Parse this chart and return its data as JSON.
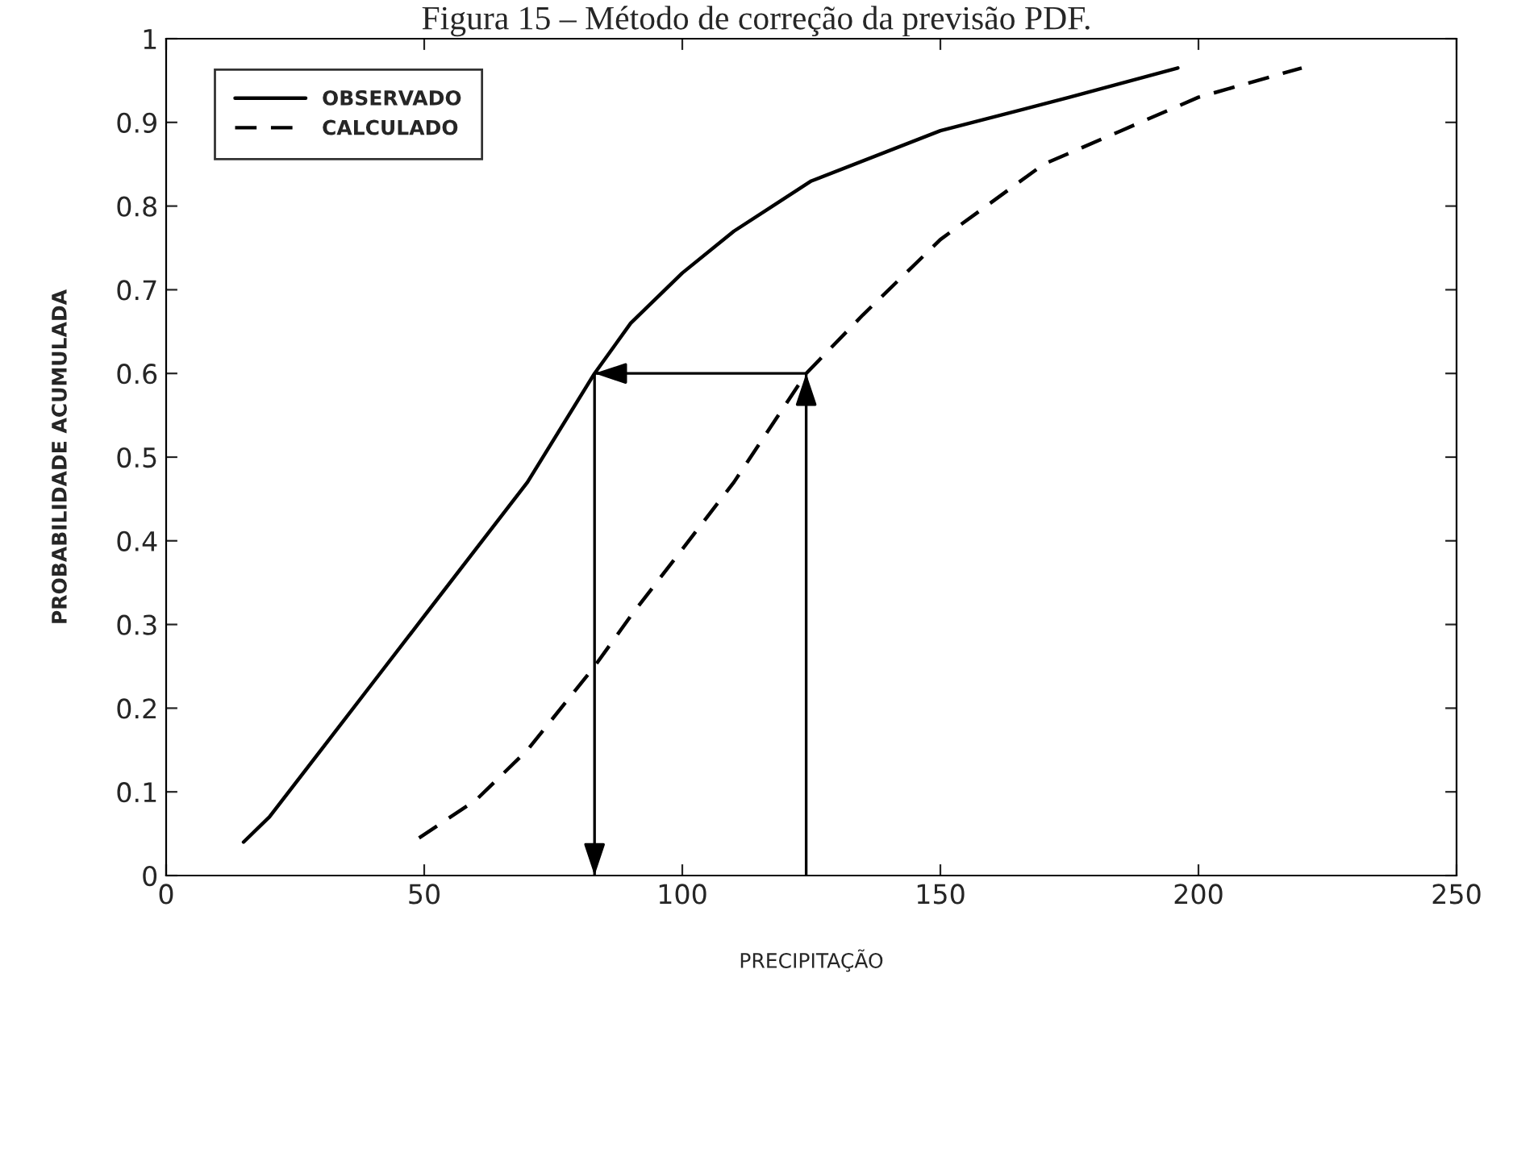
{
  "chart_data": {
    "type": "line",
    "title": "Figura 15 – Método de correção da previsão PDF.",
    "xlabel": "PRECIPITAÇÃO",
    "ylabel": "PROBABILIDADE ACUMULADA",
    "xlim": [
      0,
      250
    ],
    "xticks": [
      0,
      50,
      100,
      150,
      200,
      250
    ],
    "ylim": [
      0,
      1
    ],
    "yticks": [
      0,
      0.1,
      0.2,
      0.3,
      0.4,
      0.5,
      0.6,
      0.7,
      0.8,
      0.9,
      1
    ],
    "grid": false,
    "legend": "top left",
    "marker": "none",
    "series": [
      {
        "name": "OBSERVADO",
        "color": "#000000",
        "line_style": "solid",
        "x": [
          15,
          20,
          30,
          40,
          50,
          60,
          70,
          83,
          90,
          100,
          110,
          125,
          150,
          175,
          196
        ],
        "values": [
          0.04,
          0.07,
          0.15,
          0.23,
          0.31,
          0.39,
          0.47,
          0.6,
          0.66,
          0.72,
          0.77,
          0.83,
          0.89,
          0.93,
          0.965
        ]
      },
      {
        "name": "CALCULADO",
        "color": "#000000",
        "line_style": "dashed",
        "x": [
          49,
          60,
          70,
          83,
          90,
          100,
          110,
          124,
          135,
          150,
          170,
          185,
          200,
          220
        ],
        "values": [
          0.045,
          0.09,
          0.15,
          0.25,
          0.31,
          0.39,
          0.47,
          0.6,
          0.67,
          0.76,
          0.85,
          0.89,
          0.93,
          0.965
        ]
      },
      {
        "type": "line",
        "color": "#000000",
        "line_style": "solid",
        "x": [
          124,
          124,
          83,
          83
        ],
        "values": [
          0,
          0.6,
          0.6,
          0
        ]
      }
    ]
  }
}
